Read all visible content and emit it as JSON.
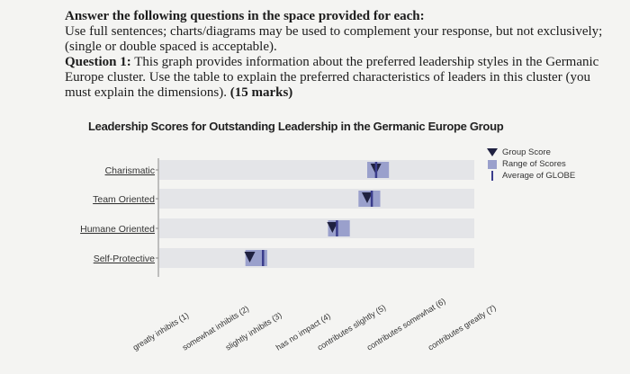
{
  "question": {
    "heading": "Answer the following questions in the space provided for each:",
    "instructions": "Use full sentences; charts/diagrams may be used to complement your response, but not exclusively; (single or double spaced is acceptable).",
    "q1_label": "Question 1:",
    "q1_text": "This graph provides information about the preferred leadership styles in the Germanic Europe cluster. Use the table to explain the preferred characteristics of leaders in this cluster (you must explain the dimensions).",
    "q1_marks": "(15 marks)"
  },
  "chart_data": {
    "type": "range-dot",
    "title": "Leadership Scores for Outstanding Leadership in the Germanic Europe Group",
    "categories": [
      "Charismatic",
      "Team Oriented",
      "Humane Oriented",
      "Self-Protective"
    ],
    "x_tick_labels": [
      "greatly inhibits (1)",
      "somewhat inhibits (2)",
      "slightly inhibits (3)",
      "has no impact (4)",
      "contributes slightly (5)",
      "contributes somewhat (6)",
      "contributes greatly (7)"
    ],
    "xlim": [
      1,
      7
    ],
    "group_score": [
      6.0,
      5.8,
      5.0,
      3.1
    ],
    "range_min": [
      5.8,
      5.6,
      4.9,
      3.0
    ],
    "range_max": [
      6.3,
      6.1,
      5.4,
      3.5
    ],
    "globe_average": [
      6.0,
      5.9,
      5.1,
      3.4
    ],
    "legend": [
      "Group Score",
      "Range of Scores",
      "Average of GLOBE"
    ],
    "colors": {
      "group_score": "#1f2140",
      "range": "#9aa0cc",
      "average": "#3b3d8c",
      "row_band": "#e4e5e8",
      "axis": "#888888"
    }
  }
}
